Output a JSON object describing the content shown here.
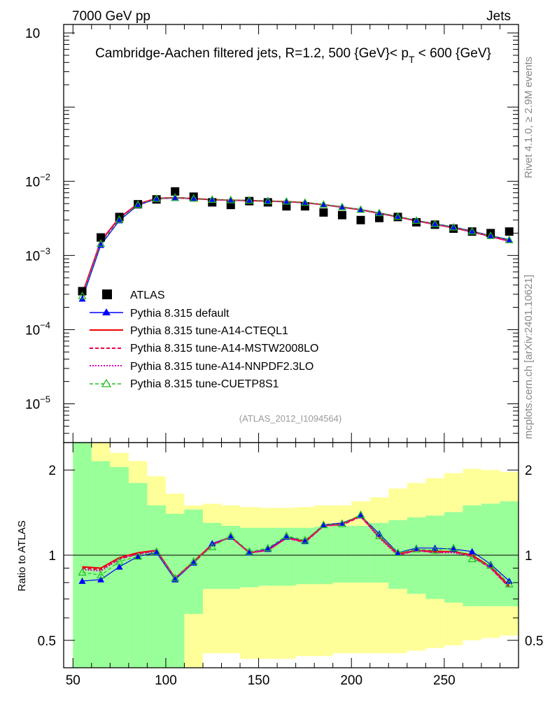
{
  "header": {
    "left": "7000 GeV pp",
    "right": "Jets",
    "title": "Cambridge-Aachen filtered jets, R=1.2, 500 {GeV}< p",
    "title_sub": "T",
    "title_tail": " < 600 {GeV}",
    "side_top": "Rivet 4.1.0, ≥ 2.9M events",
    "side_bottom": "mcplots.cern.ch [arXiv:2401.10621]",
    "analysis_id": "(ATLAS_2012_I1094564)",
    "ratio_ylabel": "Ratio to ATLAS"
  },
  "legend": {
    "atlas": "ATLAS",
    "default": "Pythia 8.315 default",
    "cteql1": "Pythia 8.315 tune-A14-CTEQL1",
    "mstw": "Pythia 8.315 tune-A14-MSTW2008LO",
    "nnpdf": "Pythia 8.315 tune-A14-NNPDF2.3LO",
    "cuetp8s1": "Pythia 8.315 tune-CUETP8S1"
  },
  "chart_data": [
    {
      "type": "scatter",
      "panel": "main",
      "yscale": "log",
      "xlim": [
        45,
        290
      ],
      "ylim": [
        3e-06,
        1.3
      ],
      "y_ticks": [
        {
          "value": 1,
          "base": "10",
          "exp": ""
        },
        {
          "value": 0.01,
          "base": "10",
          "exp": "−2"
        },
        {
          "value": 0.001,
          "base": "10",
          "exp": "−3"
        },
        {
          "value": 0.0001,
          "base": "10",
          "exp": "−4"
        },
        {
          "value": 1e-05,
          "base": "10",
          "exp": "−5"
        }
      ],
      "x": [
        55,
        65,
        75,
        85,
        95,
        105,
        115,
        125,
        135,
        145,
        155,
        165,
        175,
        185,
        195,
        205,
        215,
        225,
        235,
        245,
        255,
        265,
        275,
        285
      ],
      "series": [
        {
          "name": "ATLAS",
          "key": "atlas",
          "color": "#000000",
          "values": [
            0.00033,
            0.00175,
            0.0033,
            0.0049,
            0.0057,
            0.0073,
            0.0062,
            0.0052,
            0.0048,
            0.0054,
            0.0052,
            0.0046,
            0.0046,
            0.0038,
            0.0035,
            0.003,
            0.0032,
            0.0033,
            0.0028,
            0.0026,
            0.0023,
            0.0021,
            0.002,
            0.0021
          ]
        },
        {
          "name": "Pythia 8.315 default",
          "key": "default",
          "color": "#0000ff",
          "values": [
            0.00026,
            0.00138,
            0.00296,
            0.00476,
            0.00578,
            0.00593,
            0.0058,
            0.00564,
            0.00556,
            0.0055,
            0.00542,
            0.00534,
            0.00517,
            0.00488,
            0.00453,
            0.00418,
            0.00376,
            0.00336,
            0.00297,
            0.00269,
            0.00242,
            0.00214,
            0.00185,
            0.00164
          ]
        },
        {
          "name": "Pythia 8.315 tune-A14-CTEQL1",
          "key": "cteql1",
          "color": "#ee0000",
          "values": [
            0.0003,
            0.00157,
            0.00323,
            0.00497,
            0.00589,
            0.00603,
            0.00585,
            0.00566,
            0.00557,
            0.0055,
            0.00541,
            0.00532,
            0.00515,
            0.00484,
            0.00449,
            0.00413,
            0.00371,
            0.00332,
            0.00293,
            0.00264,
            0.00237,
            0.00209,
            0.00181,
            0.00157
          ]
        },
        {
          "name": "Pythia 8.315 tune-A14-MSTW2008LO",
          "key": "mstw",
          "color": "#ee0044",
          "values": [
            0.000295,
            0.00154,
            0.0032,
            0.00494,
            0.00587,
            0.00601,
            0.00584,
            0.00565,
            0.00556,
            0.00549,
            0.0054,
            0.00531,
            0.00514,
            0.00483,
            0.00448,
            0.00412,
            0.0037,
            0.00331,
            0.00292,
            0.00263,
            0.00236,
            0.00208,
            0.0018,
            0.00156
          ]
        },
        {
          "name": "Pythia 8.315 tune-A14-NNPDF2.3LO",
          "key": "nnpdf",
          "color": "#dd00bb",
          "values": [
            0.000292,
            0.00152,
            0.00318,
            0.00492,
            0.00585,
            0.006,
            0.00583,
            0.00564,
            0.00555,
            0.00548,
            0.00539,
            0.0053,
            0.00513,
            0.00482,
            0.00447,
            0.00411,
            0.00369,
            0.0033,
            0.00291,
            0.00262,
            0.00235,
            0.00207,
            0.00179,
            0.00155
          ]
        },
        {
          "name": "Pythia 8.315 tune-CUETP8S1",
          "key": "cuetp8s1",
          "color": "#22bb22",
          "values": [
            0.000285,
            0.00145,
            0.00305,
            0.00485,
            0.00585,
            0.00603,
            0.00588,
            0.00567,
            0.0056,
            0.00553,
            0.00544,
            0.00535,
            0.00518,
            0.00487,
            0.00451,
            0.00415,
            0.00374,
            0.00335,
            0.00296,
            0.00267,
            0.0024,
            0.00212,
            0.00184,
            0.00162
          ]
        }
      ]
    },
    {
      "type": "line",
      "panel": "ratio",
      "yscale": "log",
      "xlim": [
        45,
        290
      ],
      "ylim": [
        0.4,
        2.5
      ],
      "x_ticks": [
        50,
        100,
        150,
        200,
        250
      ],
      "y_ticks": [
        0.5,
        1,
        2
      ],
      "bins": [
        50,
        60,
        70,
        80,
        90,
        100,
        110,
        120,
        130,
        140,
        150,
        160,
        170,
        180,
        190,
        200,
        210,
        220,
        230,
        240,
        250,
        260,
        270,
        280,
        290
      ],
      "band_inner": {
        "color": "#99ff99",
        "lo": [
          0.3,
          0.3,
          0.3,
          0.3,
          0.3,
          0.3,
          0.62,
          0.76,
          0.76,
          0.77,
          0.78,
          0.78,
          0.79,
          0.79,
          0.8,
          0.8,
          0.8,
          0.76,
          0.73,
          0.7,
          0.68,
          0.66,
          0.66,
          0.66
        ],
        "hi": [
          3,
          2.15,
          2.05,
          1.8,
          1.5,
          1.4,
          1.45,
          1.3,
          1.27,
          1.25,
          1.25,
          1.25,
          1.25,
          1.26,
          1.27,
          1.27,
          1.3,
          1.33,
          1.36,
          1.38,
          1.42,
          1.5,
          1.52,
          1.55
        ]
      },
      "band_outer": {
        "color": "#ffff99",
        "lo": [
          0.3,
          0.3,
          0.3,
          0.5,
          0.3,
          0.3,
          0.37,
          0.45,
          0.45,
          0.43,
          0.43,
          0.43,
          0.44,
          0.44,
          0.45,
          0.45,
          0.45,
          0.45,
          0.46,
          0.47,
          0.48,
          0.5,
          0.51,
          0.52
        ],
        "hi": [
          3,
          3,
          2.3,
          2.15,
          1.9,
          1.65,
          1.5,
          1.52,
          1.5,
          1.48,
          1.47,
          1.47,
          1.48,
          1.5,
          1.5,
          1.55,
          1.6,
          1.72,
          1.8,
          1.87,
          1.95,
          2.02,
          2.0,
          1.97
        ]
      },
      "x": [
        55,
        65,
        75,
        85,
        95,
        105,
        115,
        125,
        135,
        145,
        155,
        165,
        175,
        185,
        195,
        205,
        215,
        225,
        235,
        245,
        255,
        265,
        275,
        285
      ],
      "series": [
        {
          "name": "Pythia 8.315 default",
          "key": "default",
          "color": "#0000ff",
          "values": [
            0.81,
            0.82,
            0.91,
            0.99,
            1.02,
            0.82,
            0.94,
            1.1,
            1.16,
            1.02,
            1.05,
            1.16,
            1.12,
            1.28,
            1.3,
            1.38,
            1.19,
            1.02,
            1.06,
            1.06,
            1.05,
            1.03,
            0.93,
            0.81
          ]
        },
        {
          "name": "Pythia 8.315 tune-A14-CTEQL1",
          "key": "cteql1",
          "color": "#ee0000",
          "values": [
            0.91,
            0.9,
            0.98,
            1.02,
            1.04,
            0.83,
            0.95,
            1.09,
            1.16,
            1.02,
            1.04,
            1.15,
            1.12,
            1.27,
            1.29,
            1.38,
            1.16,
            1.01,
            1.04,
            1.03,
            1.03,
            1.0,
            0.91,
            0.78
          ]
        },
        {
          "name": "Pythia 8.315 tune-A14-MSTW2008LO",
          "key": "mstw",
          "color": "#ee0044",
          "values": [
            0.9,
            0.89,
            0.97,
            1.01,
            1.04,
            0.83,
            0.94,
            1.09,
            1.16,
            1.02,
            1.04,
            1.15,
            1.11,
            1.27,
            1.28,
            1.37,
            1.16,
            1.0,
            1.04,
            1.02,
            1.03,
            0.99,
            0.9,
            0.77
          ]
        },
        {
          "name": "Pythia 8.315 tune-A14-NNPDF2.3LO",
          "key": "nnpdf",
          "color": "#dd00bb",
          "values": [
            0.89,
            0.88,
            0.97,
            1.01,
            1.03,
            0.83,
            0.94,
            1.09,
            1.16,
            1.02,
            1.04,
            1.15,
            1.11,
            1.27,
            1.28,
            1.37,
            1.15,
            1.0,
            1.04,
            1.02,
            1.02,
            0.99,
            0.9,
            0.77
          ]
        },
        {
          "name": "Pythia 8.315 tune-CUETP8S1",
          "key": "cuetp8s1",
          "color": "#22bb22",
          "values": [
            0.87,
            0.85,
            0.95,
            0.99,
            1.03,
            0.83,
            0.95,
            1.07,
            1.17,
            1.03,
            1.06,
            1.17,
            1.13,
            1.28,
            1.29,
            1.39,
            1.17,
            1.02,
            1.05,
            1.04,
            1.06,
            0.97,
            0.92,
            0.79
          ]
        }
      ]
    }
  ]
}
